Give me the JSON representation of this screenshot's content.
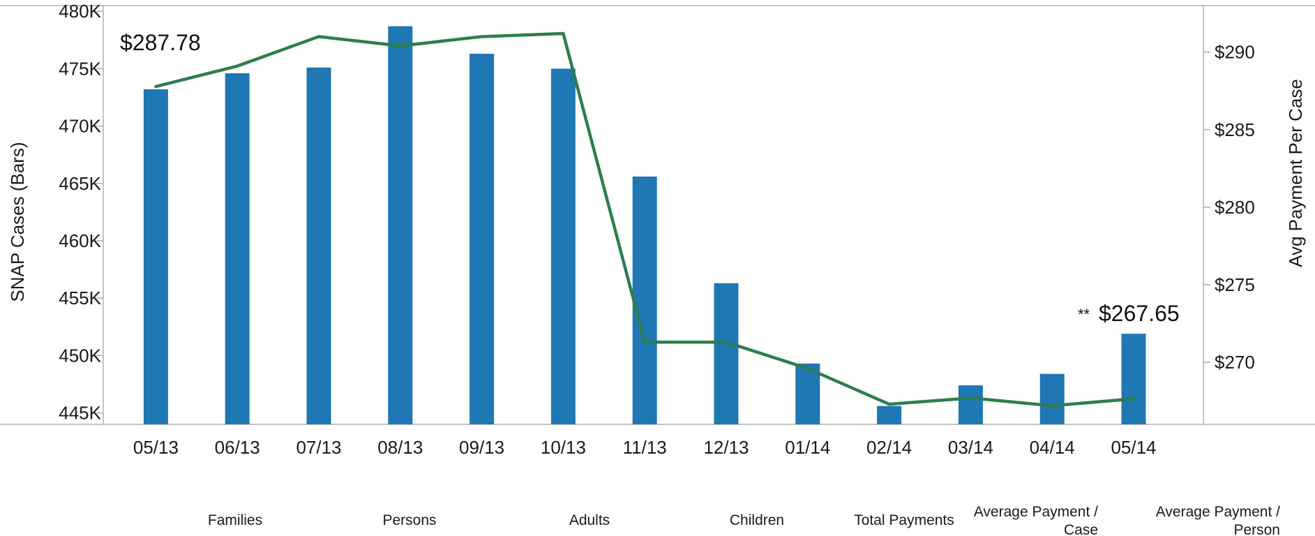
{
  "chart_data": {
    "type": "bar",
    "categories": [
      "05/13",
      "06/13",
      "07/13",
      "08/13",
      "09/13",
      "10/13",
      "11/13",
      "12/13",
      "01/14",
      "02/14",
      "03/14",
      "04/14",
      "05/14"
    ],
    "series": [
      {
        "type": "bar",
        "axis": "left",
        "values": [
          473200,
          474600,
          475100,
          478700,
          476300,
          475000,
          465600,
          456300,
          449300,
          445600,
          447400,
          448400,
          451900
        ]
      },
      {
        "type": "line",
        "axis": "right",
        "values": [
          287.78,
          289.1,
          291.0,
          290.4,
          291.0,
          291.2,
          271.3,
          271.3,
          269.6,
          267.3,
          267.7,
          267.2,
          267.65
        ]
      }
    ],
    "ylabel": "SNAP Cases (Bars)",
    "ylabel_right": "Avg Payment Per Case",
    "ylim": [
      444000,
      480500
    ],
    "ylim_right": [
      266.0,
      293.0
    ],
    "yticks": [
      445000,
      450000,
      455000,
      460000,
      465000,
      470000,
      475000,
      480000
    ],
    "ytick_labels": [
      "445K",
      "450K",
      "455K",
      "460K",
      "465K",
      "470K",
      "475K",
      "480K"
    ],
    "yticks_right": [
      270,
      275,
      280,
      285,
      290
    ],
    "ytick_labels_right": [
      "$270",
      "$275",
      "$280",
      "$285",
      "$290"
    ],
    "annotations": {
      "first_label": "$287.78",
      "last_prefix": "**",
      "last_label": "$267.65"
    },
    "footer_labels": [
      [
        "Families"
      ],
      [
        "Persons"
      ],
      [
        "Adults"
      ],
      [
        "Children"
      ],
      [
        "Total Payments"
      ],
      [
        "Average Payment /",
        "Case"
      ],
      [
        "Average Payment /",
        "Person"
      ]
    ],
    "grid": false,
    "legend": "none",
    "colors": {
      "bar": "#1f77b4",
      "line": "#2e7d4f",
      "axis": "#b0b0b0"
    }
  }
}
